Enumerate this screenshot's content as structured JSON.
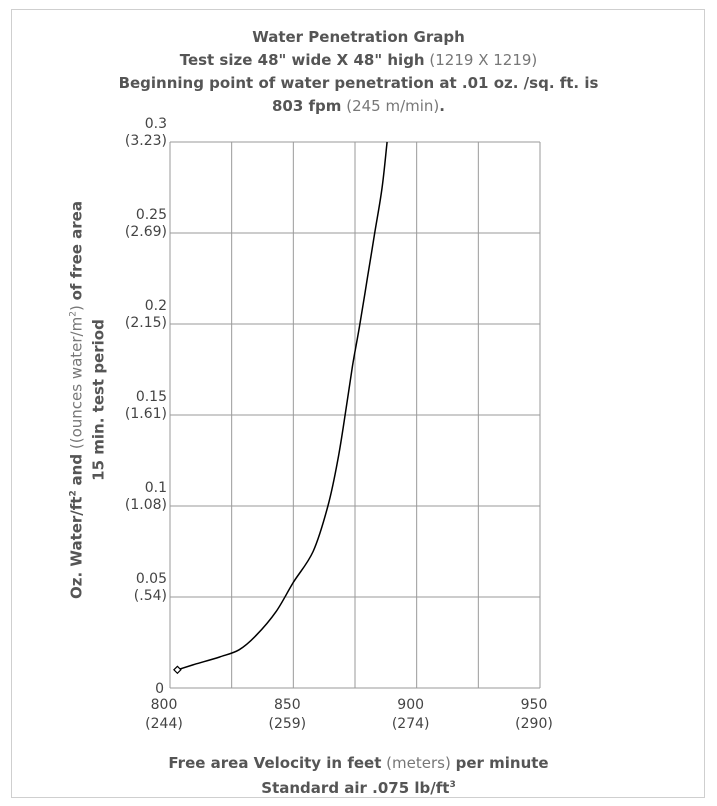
{
  "title": {
    "line1": "Water Penetration Graph",
    "line2_bold": "Test size 48\" wide X 48\" high",
    "line2_normal": "(1219 X 1219)",
    "line3": "Beginning point of water penetration at .01 oz. /sq. ft. is",
    "line4_bold": "803 fpm",
    "line4_normal": "(245 m/min)",
    "line4_end": "."
  },
  "axes": {
    "xlabel_line1_bold_a": "Free area Velocity in feet",
    "xlabel_line1_normal": "(meters)",
    "xlabel_line1_bold_b": "per minute",
    "xlabel_line2": "Standard air .075 lb/ft",
    "xlabel_line2_sup": "3",
    "ylabel_line1_a": "Oz. Water/ft",
    "ylabel_line1_sup1": "2",
    "ylabel_line1_b": "and",
    "ylabel_line1_normal": "((ounces water/m",
    "ylabel_line1_sup2": "2",
    "ylabel_line1_normal_end": ")",
    "ylabel_line1_c": "of free area",
    "ylabel_line2": "15 min. test period"
  },
  "chart_data": {
    "type": "line",
    "title": "Water Penetration Graph",
    "xlabel": "Free area Velocity in feet (meters) per minute",
    "ylabel": "Oz. Water/ft2 and ((ounces water/m2) of free area 15 min. test period",
    "xlim": [
      800,
      950
    ],
    "ylim": [
      0,
      0.3
    ],
    "x_ticks": [
      {
        "value": 800,
        "label": "800",
        "sub": "(244)"
      },
      {
        "value": 850,
        "label": "850",
        "sub": "(259)"
      },
      {
        "value": 900,
        "label": "900",
        "sub": "(274)"
      },
      {
        "value": 950,
        "label": "950",
        "sub": "(290)"
      }
    ],
    "y_ticks": [
      {
        "value": 0,
        "label": "0",
        "sub": ""
      },
      {
        "value": 0.05,
        "label": "0.05",
        "sub": "(.54)"
      },
      {
        "value": 0.1,
        "label": "0.1",
        "sub": "(1.08)"
      },
      {
        "value": 0.15,
        "label": "0.15",
        "sub": "(1.61)"
      },
      {
        "value": 0.2,
        "label": "0.2",
        "sub": "(2.15)"
      },
      {
        "value": 0.25,
        "label": "0.25",
        "sub": "(2.69)"
      },
      {
        "value": 0.3,
        "label": "0.3",
        "sub": "(3.23)"
      }
    ],
    "grid": true,
    "series": [
      {
        "x": [
          803,
          810,
          820,
          828,
          835,
          843,
          850,
          858,
          864,
          868,
          871,
          874,
          877,
          880,
          883,
          886,
          888
        ],
        "y": [
          0.01,
          0.013,
          0.017,
          0.021,
          0.029,
          0.042,
          0.058,
          0.075,
          0.1,
          0.125,
          0.15,
          0.177,
          0.2,
          0.225,
          0.25,
          0.275,
          0.3
        ]
      }
    ],
    "markers": [
      {
        "x": 803,
        "y": 0.01,
        "shape": "diamond"
      }
    ],
    "line_color": "#000000",
    "grid_color": "#9a9a9a"
  }
}
